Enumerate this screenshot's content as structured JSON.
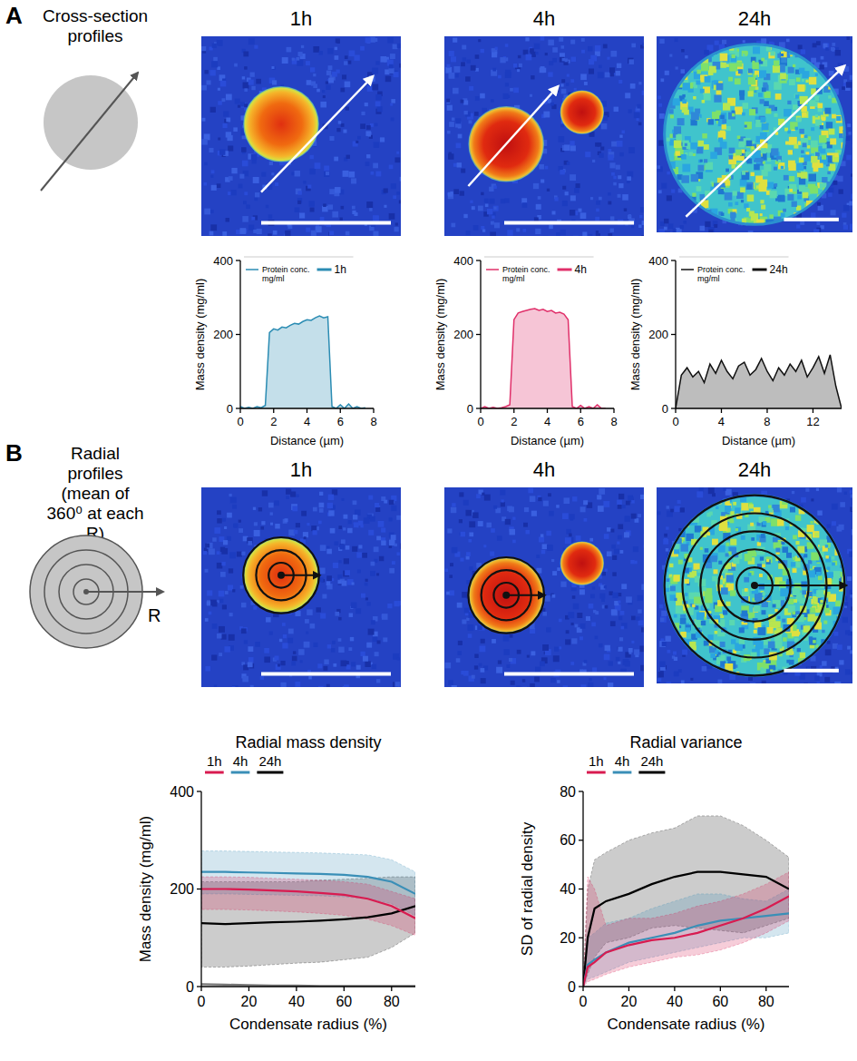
{
  "panels": [
    {
      "letter": "A",
      "label": "Cross-section profiles",
      "image_titles": [
        "1h",
        "4h",
        "24h"
      ]
    },
    {
      "letter": "B",
      "label": "Radial profiles (mean of 360⁰ at each R)",
      "schematic_label": "R",
      "image_titles": [
        "1h",
        "4h",
        "24h"
      ]
    }
  ],
  "chart_data": [
    {
      "type": "area",
      "x_label": "Distance (µm)",
      "y_label": "Mass density (mg/ml)",
      "x": [
        0,
        0.25,
        0.5,
        0.75,
        1,
        1.25,
        1.5,
        1.75,
        2,
        2.25,
        2.5,
        2.75,
        3,
        3.25,
        3.5,
        3.75,
        4,
        4.25,
        4.5,
        4.75,
        5,
        5.25,
        5.5,
        5.75,
        6,
        6.25,
        6.5,
        6.75,
        7,
        7.25,
        7.5
      ],
      "series": [
        {
          "name": "Protein conc. mg/ml",
          "color": "#2b8cb3",
          "values": [
            5,
            0,
            3,
            0,
            5,
            2,
            8,
            205,
            215,
            212,
            220,
            218,
            225,
            230,
            228,
            235,
            240,
            238,
            245,
            250,
            245,
            248,
            5,
            0,
            10,
            0,
            12,
            0,
            5,
            0,
            2
          ]
        }
      ],
      "annotation": "1h",
      "legend": "upper left",
      "xlim": [
        0,
        8
      ],
      "xticks": [
        0,
        2,
        4,
        6,
        8
      ],
      "ylim": [
        0,
        400
      ],
      "yticks": [
        0,
        200,
        400
      ]
    },
    {
      "type": "area",
      "x_label": "Distance (µm)",
      "y_label": "Mass density (mg/ml)",
      "x": [
        0,
        0.25,
        0.5,
        0.75,
        1,
        1.25,
        1.5,
        1.75,
        2,
        2.25,
        2.5,
        2.75,
        3,
        3.25,
        3.5,
        3.75,
        4,
        4.25,
        4.5,
        4.75,
        5,
        5.25,
        5.5,
        5.75,
        6,
        6.25,
        6.5,
        6.75,
        7,
        7.25,
        7.5
      ],
      "series": [
        {
          "name": "Protein conc. mg/ml",
          "color": "#e0306a",
          "values": [
            0,
            5,
            0,
            3,
            0,
            2,
            5,
            10,
            240,
            258,
            262,
            265,
            268,
            270,
            265,
            268,
            262,
            265,
            258,
            260,
            255,
            240,
            5,
            0,
            8,
            0,
            5,
            0,
            10,
            0,
            0
          ]
        }
      ],
      "annotation": "4h",
      "legend": "upper left",
      "xlim": [
        0,
        8
      ],
      "xticks": [
        0,
        2,
        4,
        6,
        8
      ],
      "ylim": [
        0,
        400
      ],
      "yticks": [
        0,
        200,
        400
      ]
    },
    {
      "type": "area",
      "x_label": "Distance (µm)",
      "y_label": "Mass density (mg/ml)",
      "x": [
        0,
        0.5,
        1,
        1.5,
        2,
        2.5,
        3,
        3.5,
        4,
        4.5,
        5,
        5.5,
        6,
        6.5,
        7,
        7.5,
        8,
        8.5,
        9,
        9.5,
        10,
        10.5,
        11,
        11.5,
        12,
        12.5,
        13,
        13.5,
        14,
        14.5
      ],
      "series": [
        {
          "name": "Protein conc. mg/ml",
          "color": "#111111",
          "values": [
            0,
            90,
            110,
            85,
            100,
            70,
            120,
            95,
            130,
            100,
            80,
            115,
            125,
            90,
            105,
            135,
            100,
            75,
            110,
            90,
            120,
            100,
            130,
            85,
            110,
            140,
            95,
            145,
            60,
            0
          ]
        }
      ],
      "annotation": "24h",
      "legend": "upper left",
      "xlim": [
        0,
        14.5
      ],
      "xticks": [
        0,
        4,
        8,
        12
      ],
      "ylim": [
        0,
        400
      ],
      "yticks": [
        0,
        200,
        400
      ]
    },
    {
      "type": "line",
      "title": "Radial mass density",
      "x_label": "Condensate radius (%)",
      "y_label": "Mass density (mg/ml)",
      "x": [
        0,
        10,
        20,
        30,
        40,
        50,
        60,
        70,
        80,
        90
      ],
      "series": [
        {
          "name": "1h",
          "color": "#d81b50",
          "values": [
            200,
            200,
            199,
            197,
            195,
            192,
            188,
            180,
            165,
            140
          ],
          "lower": [
            158,
            158,
            157,
            155,
            153,
            150,
            146,
            138,
            125,
            105
          ],
          "upper": [
            225,
            225,
            224,
            222,
            220,
            218,
            215,
            210,
            195,
            180
          ]
        },
        {
          "name": "4h",
          "color": "#3a8fb7",
          "values": [
            235,
            235,
            234,
            233,
            232,
            231,
            229,
            225,
            215,
            190
          ],
          "lower": [
            190,
            190,
            189,
            188,
            187,
            186,
            184,
            180,
            170,
            145
          ],
          "upper": [
            278,
            278,
            277,
            276,
            275,
            274,
            272,
            270,
            260,
            235
          ]
        },
        {
          "name": "24h",
          "color": "#000000",
          "values": [
            130,
            128,
            130,
            132,
            133,
            135,
            138,
            142,
            150,
            165
          ],
          "lower": [
            40,
            40,
            42,
            45,
            48,
            50,
            55,
            60,
            80,
            110
          ],
          "upper": [
            215,
            215,
            215,
            215,
            215,
            218,
            220,
            222,
            225,
            225
          ]
        },
        {
          "color": "#777777",
          "values": [
            5,
            4,
            3,
            2,
            2,
            1,
            1,
            1,
            1,
            1
          ]
        }
      ],
      "legend": "upper left",
      "xlim": [
        0,
        90
      ],
      "xticks": [
        0,
        20,
        40,
        60,
        80
      ],
      "ylim": [
        0,
        400
      ],
      "yticks": [
        0,
        200,
        400
      ]
    },
    {
      "type": "line",
      "title": "Radial variance",
      "x_label": "Condensate radius (%)",
      "y_label": "SD of radial density",
      "x": [
        0,
        2,
        5,
        10,
        20,
        30,
        40,
        50,
        60,
        70,
        80,
        90
      ],
      "series": [
        {
          "name": "1h",
          "color": "#d81b50",
          "values": [
            0,
            8,
            10,
            14,
            17,
            19,
            20,
            22,
            25,
            28,
            32,
            37
          ],
          "lower": [
            0,
            2,
            3,
            5,
            8,
            10,
            12,
            13,
            15,
            18,
            22,
            27
          ],
          "upper": [
            0,
            45,
            40,
            25,
            28,
            28,
            30,
            33,
            35,
            38,
            42,
            47
          ]
        },
        {
          "name": "4h",
          "color": "#3a8fb7",
          "values": [
            0,
            9,
            11,
            14,
            18,
            20,
            22,
            25,
            27,
            28,
            29,
            30
          ],
          "lower": [
            0,
            3,
            4,
            6,
            10,
            12,
            14,
            16,
            18,
            20,
            20,
            22
          ],
          "upper": [
            0,
            20,
            22,
            26,
            28,
            32,
            35,
            38,
            38,
            36,
            35,
            40
          ]
        },
        {
          "name": "24h",
          "color": "#000000",
          "values": [
            0,
            20,
            32,
            35,
            38,
            42,
            45,
            47,
            47,
            46,
            45,
            40
          ],
          "lower": [
            0,
            5,
            12,
            18,
            20,
            24,
            25,
            24,
            23,
            22,
            25,
            28
          ],
          "upper": [
            0,
            40,
            52,
            55,
            60,
            63,
            65,
            70,
            70,
            66,
            60,
            53
          ]
        }
      ],
      "legend": "upper left",
      "xlim": [
        0,
        90
      ],
      "xticks": [
        0,
        20,
        40,
        60,
        80
      ],
      "ylim": [
        0,
        80
      ],
      "yticks": [
        0,
        20,
        40,
        60,
        80
      ]
    }
  ]
}
